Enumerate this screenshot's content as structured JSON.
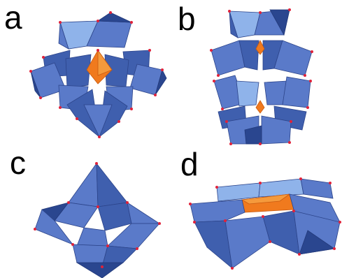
{
  "panels": [
    {
      "label": "a"
    },
    {
      "label": "b"
    },
    {
      "label": "c"
    },
    {
      "label": "d"
    }
  ],
  "colors": {
    "polyhedron_dark": "#3f5fae",
    "polyhedron_mid": "#5a7ac9",
    "polyhedron_light": "#8fb3ea",
    "central_unit": "#f07a1e",
    "vertex_atom": "#e0223a"
  }
}
